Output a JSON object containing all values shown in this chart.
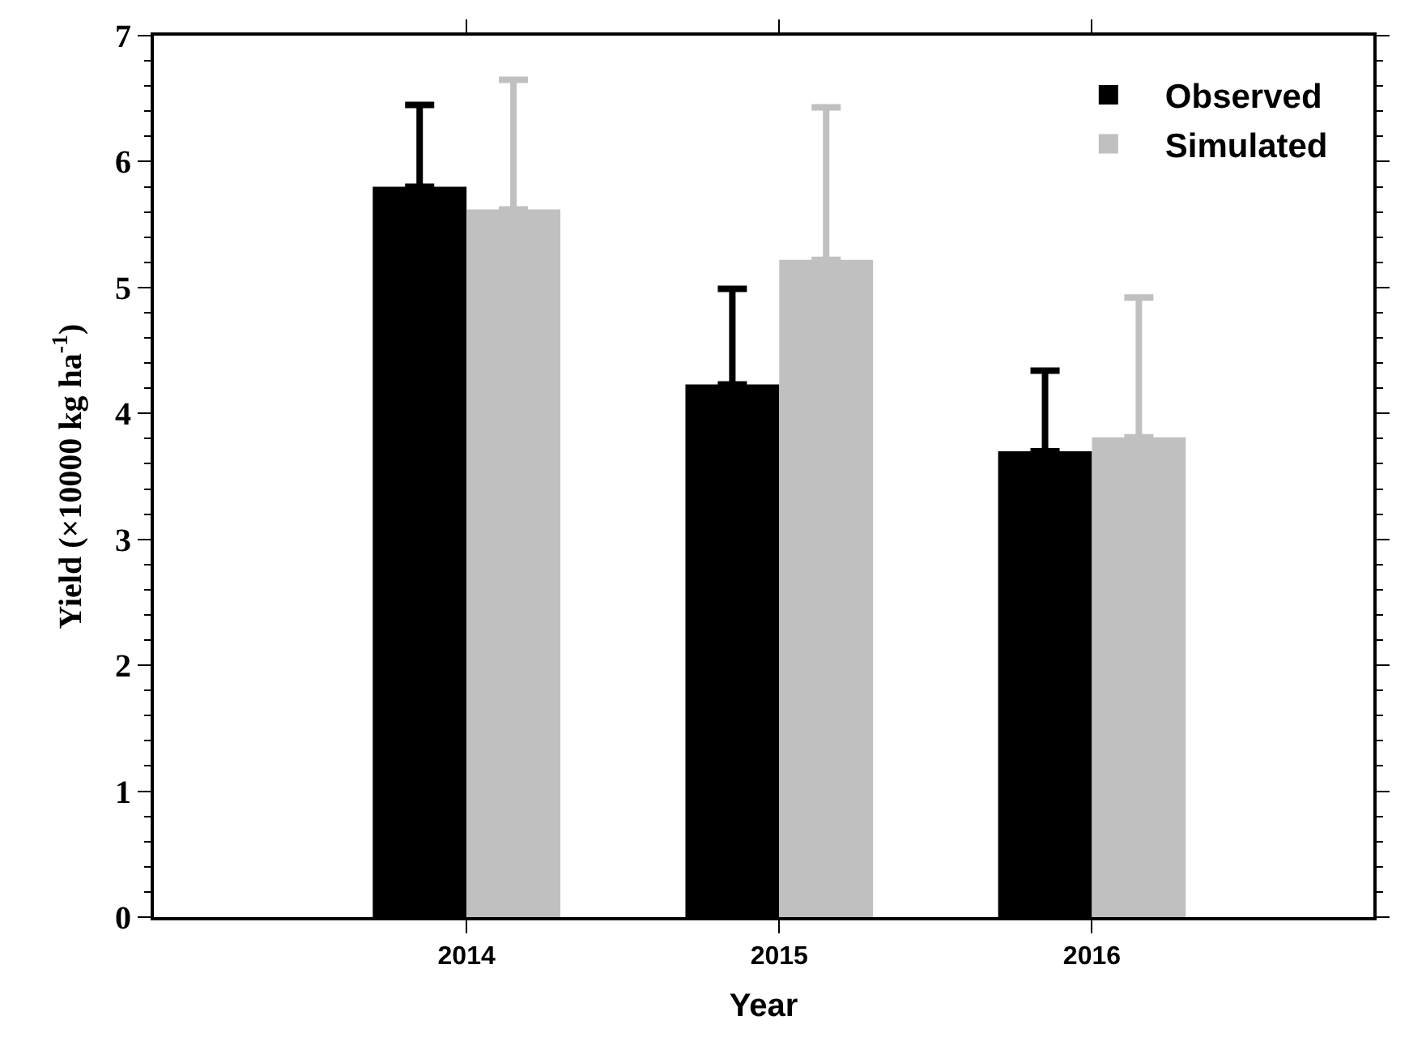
{
  "chart_data": {
    "type": "bar",
    "xlabel": "Year",
    "ylabel": "Yield (×10000 kg ha$^{-1}$)",
    "categories": [
      "2014",
      "2015",
      "2016"
    ],
    "series": [
      {
        "name": "Observed",
        "color": "#000000",
        "values": [
          5.8,
          4.23,
          3.7
        ],
        "errors": [
          [
            5.8,
            6.45
          ],
          [
            4.23,
            4.99
          ],
          [
            3.7,
            4.34
          ]
        ]
      },
      {
        "name": "Simulated",
        "color": "#c0c0c0",
        "values": [
          5.62,
          5.22,
          3.81
        ],
        "errors": [
          [
            5.62,
            6.65
          ],
          [
            5.22,
            6.43
          ],
          [
            3.81,
            4.92
          ]
        ]
      }
    ],
    "ylim": [
      0,
      7
    ],
    "yticks": [
      0,
      1,
      2,
      3,
      4,
      5,
      6,
      7
    ],
    "legend": "top right"
  }
}
